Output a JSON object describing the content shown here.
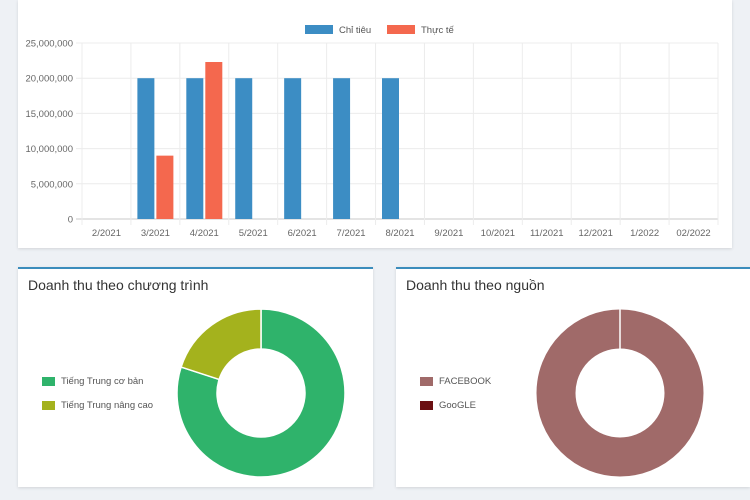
{
  "chart_data": [
    {
      "type": "bar",
      "title": "",
      "categories": [
        "2/2021",
        "3/2021",
        "4/2021",
        "5/2021",
        "6/2021",
        "7/2021",
        "8/2021",
        "9/2021",
        "10/2021",
        "11/2021",
        "12/2021",
        "1/2022",
        "02/2022"
      ],
      "series": [
        {
          "name": "Chỉ tiêu",
          "color": "#3c8dc4",
          "values": [
            0,
            20000000,
            20000000,
            20000000,
            20000000,
            20000000,
            20000000,
            0,
            0,
            0,
            0,
            0,
            0
          ]
        },
        {
          "name": "Thực tế",
          "color": "#f4684e",
          "values": [
            0,
            9000000,
            22300000,
            0,
            0,
            0,
            0,
            0,
            0,
            0,
            0,
            0,
            0
          ]
        }
      ],
      "yticks": [
        "0",
        "5,000,000",
        "10,000,000",
        "15,000,000",
        "20,000,000",
        "25,000,000"
      ],
      "ylim": [
        0,
        25000000
      ],
      "grid": true,
      "legend": "top"
    },
    {
      "type": "pie",
      "title": "Doanh thu theo chương trình",
      "labels": [
        "Tiếng Trung cơ bản",
        "Tiếng Trung nâng cao"
      ],
      "values": [
        80,
        20
      ],
      "colors": [
        "#2fb36b",
        "#a4b21d"
      ],
      "legend": "left"
    },
    {
      "type": "pie",
      "title": "Doanh thu theo nguồn",
      "labels": [
        "FACEBOOK",
        "GooGLE"
      ],
      "values": [
        100,
        0
      ],
      "colors": [
        "#a06a69",
        "#6b0f12"
      ],
      "legend": "left"
    }
  ]
}
